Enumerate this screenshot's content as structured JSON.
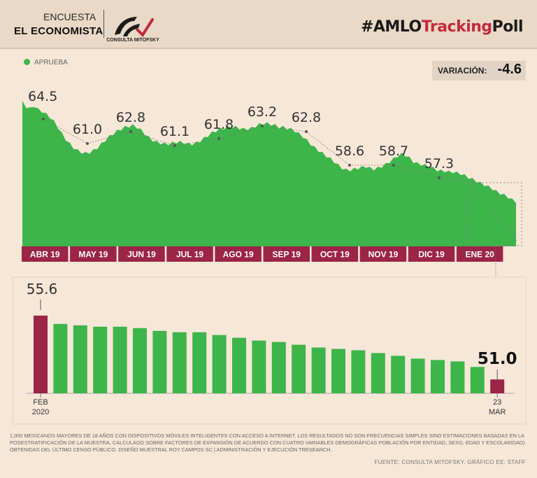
{
  "header": {
    "encuesta": "ENCUESTA",
    "economista": "EL ECONOMISTA",
    "logo_text": "CONSULTA MITOFSKY",
    "hashtag_prefix": "#AMLO",
    "hashtag_accent": "Tracking",
    "hashtag_suffix": "Poll"
  },
  "legend": {
    "label": "APRUEBA"
  },
  "variacion": {
    "label": "VARIACIÓN:",
    "value": "-4.6"
  },
  "colors": {
    "green": "#3db54a",
    "red": "#9b2447",
    "bg": "#f7e7d7"
  },
  "chart_data": [
    {
      "type": "area",
      "series": [
        {
          "name": "APRUEBA"
        }
      ],
      "months": [
        "ABR 19",
        "MAY 19",
        "JUN 19",
        "JUL 19",
        "AGO 19",
        "SEP 19",
        "OCT 19",
        "NOV 19",
        "DIC 19",
        "ENE 20"
      ],
      "monthly_labels": [
        {
          "month": "ABR 19",
          "value": "64.5"
        },
        {
          "month": "MAY 19",
          "value": "61.0"
        },
        {
          "month": "JUN 19",
          "value": "62.8"
        },
        {
          "month": "JUL 19",
          "value": "61.1"
        },
        {
          "month": "AGO 19",
          "value": "61.8"
        },
        {
          "month": "SEP 19",
          "value": "63.2"
        },
        {
          "month": "OCT 19",
          "value": "62.8"
        },
        {
          "month": "NOV 19",
          "value": "58.6"
        },
        {
          "month": "DIC 19",
          "value": "58.7"
        },
        {
          "month": "ENE 20",
          "value": "57.3"
        }
      ],
      "daily_values": [
        65.5,
        65.0,
        64.8,
        65.1,
        64.7,
        64.5,
        64.2,
        63.9,
        63.4,
        62.8,
        62.1,
        61.5,
        61.0,
        60.6,
        60.3,
        60.1,
        60.0,
        60.1,
        60.3,
        60.6,
        61.0,
        61.4,
        61.8,
        62.1,
        62.4,
        62.6,
        62.8,
        62.9,
        63.0,
        62.8,
        62.5,
        62.1,
        61.7,
        61.4,
        61.2,
        61.1,
        61.0,
        61.0,
        61.1,
        61.2,
        61.2,
        61.1,
        61.0,
        61.0,
        61.1,
        61.3,
        61.6,
        61.9,
        62.2,
        62.4,
        62.6,
        62.7,
        62.8,
        62.8,
        62.8,
        62.7,
        62.6,
        62.6,
        62.7,
        62.9,
        63.1,
        63.2,
        63.2,
        63.1,
        63.0,
        62.8,
        62.8,
        62.7,
        62.6,
        62.4,
        62.1,
        61.8,
        61.4,
        61.0,
        60.6,
        60.3,
        60.0,
        59.7,
        59.4,
        59.1,
        58.7,
        58.4,
        58.2,
        58.2,
        58.3,
        58.4,
        58.5,
        58.6,
        58.4,
        58.3,
        58.4,
        58.6,
        58.8,
        59.1,
        59.4,
        59.7,
        59.9,
        59.8,
        59.5,
        59.1,
        58.9,
        58.8,
        58.7,
        58.6,
        58.4,
        58.2,
        58.1,
        58.1,
        58.0,
        58.0,
        57.9,
        57.8,
        57.6,
        57.4,
        57.2,
        57.0,
        56.8,
        56.6,
        56.4,
        56.2,
        55.9,
        55.7,
        55.5,
        55.3,
        55.0,
        54.8
      ]
    },
    {
      "type": "bar",
      "categories": [
        "FEB 2020",
        "",
        "",
        "",
        "",
        "",
        "",
        "",
        "",
        "",
        "",
        "",
        "",
        "",
        "",
        "",
        "",
        "",
        "",
        "",
        "",
        "",
        "",
        "23 MAR"
      ],
      "values": [
        55.6,
        55.0,
        54.9,
        54.8,
        54.8,
        54.7,
        54.5,
        54.4,
        54.4,
        54.2,
        54.0,
        53.8,
        53.7,
        53.5,
        53.3,
        53.2,
        53.1,
        52.9,
        52.7,
        52.5,
        52.4,
        52.3,
        51.9,
        51.0
      ],
      "first_label": "55.6",
      "last_label": "51.0",
      "start_axis_label": [
        "FEB",
        "2020"
      ],
      "end_axis_label": [
        "23",
        "MAR"
      ],
      "ylim": [
        50,
        56
      ]
    }
  ],
  "footnote": "1,000 mexicanos mayores de 18 años con dispositivos móviles inteligentes con acceso a internet. Los resultados no son frecuencias simples sino estimaciones basadas en la posestratificación de la muestra, calculado sobre factores de expansión de acuerdo con cuatro variables demográficas población por entidad, sexo, edad y escolaridad) obtenidas del último censo público. Diseño muestral Roy Campos SC | Administración y ejecución TResearch.",
  "source": "FUENTE: CONSULTA MITOFSKY. GRÁFICO EE: STAFF"
}
